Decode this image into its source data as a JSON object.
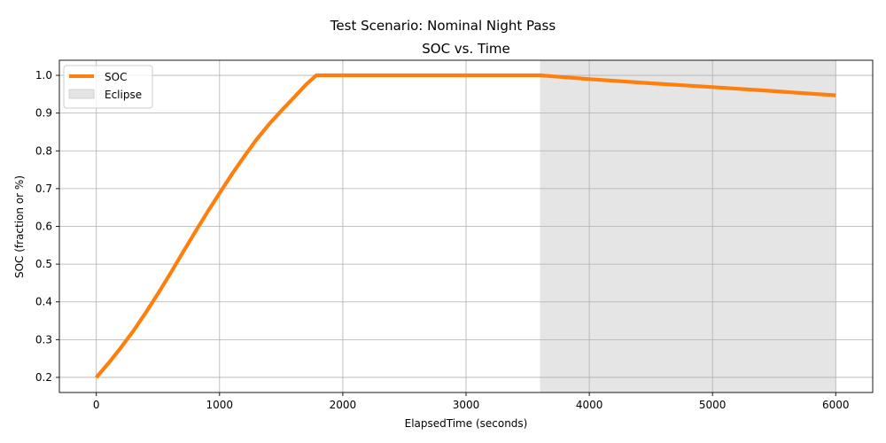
{
  "suptitle": "Test Scenario: Nominal Night Pass",
  "chart_data": {
    "type": "line",
    "title": "SOC vs. Time",
    "xlabel": "ElapsedTime (seconds)",
    "ylabel": "SOC (fraction or %)",
    "xlim": [
      -300,
      6300
    ],
    "ylim": [
      0.16,
      1.04
    ],
    "xticks": [
      0,
      1000,
      2000,
      3000,
      4000,
      5000,
      6000
    ],
    "xtick_labels": [
      "0",
      "1000",
      "2000",
      "3000",
      "4000",
      "5000",
      "6000"
    ],
    "yticks": [
      0.2,
      0.3,
      0.4,
      0.5,
      0.6,
      0.7,
      0.8,
      0.9,
      1.0
    ],
    "ytick_labels": [
      "0.2",
      "0.3",
      "0.4",
      "0.5",
      "0.6",
      "0.7",
      "0.8",
      "0.9",
      "1.0"
    ],
    "grid": true,
    "legend_position": "top-left",
    "series": [
      {
        "name": "SOC",
        "color": "#ff7f0e",
        "x": [
          0,
          100,
          200,
          300,
          400,
          500,
          600,
          700,
          800,
          900,
          1000,
          1100,
          1200,
          1300,
          1400,
          1500,
          1600,
          1700,
          1785,
          2000,
          2500,
          3000,
          3600,
          4000,
          4500,
          5000,
          5500,
          6000
        ],
        "y": [
          0.2,
          0.238,
          0.279,
          0.323,
          0.371,
          0.422,
          0.475,
          0.53,
          0.584,
          0.637,
          0.688,
          0.738,
          0.785,
          0.83,
          0.87,
          0.906,
          0.94,
          0.975,
          1.0,
          1.0,
          1.0,
          1.0,
          1.0,
          0.99,
          0.979,
          0.969,
          0.958,
          0.947
        ]
      }
    ],
    "shaded_regions": [
      {
        "name": "Eclipse",
        "x_start": 3600,
        "x_end": 6000,
        "color": "#e5e5e5"
      }
    ]
  }
}
